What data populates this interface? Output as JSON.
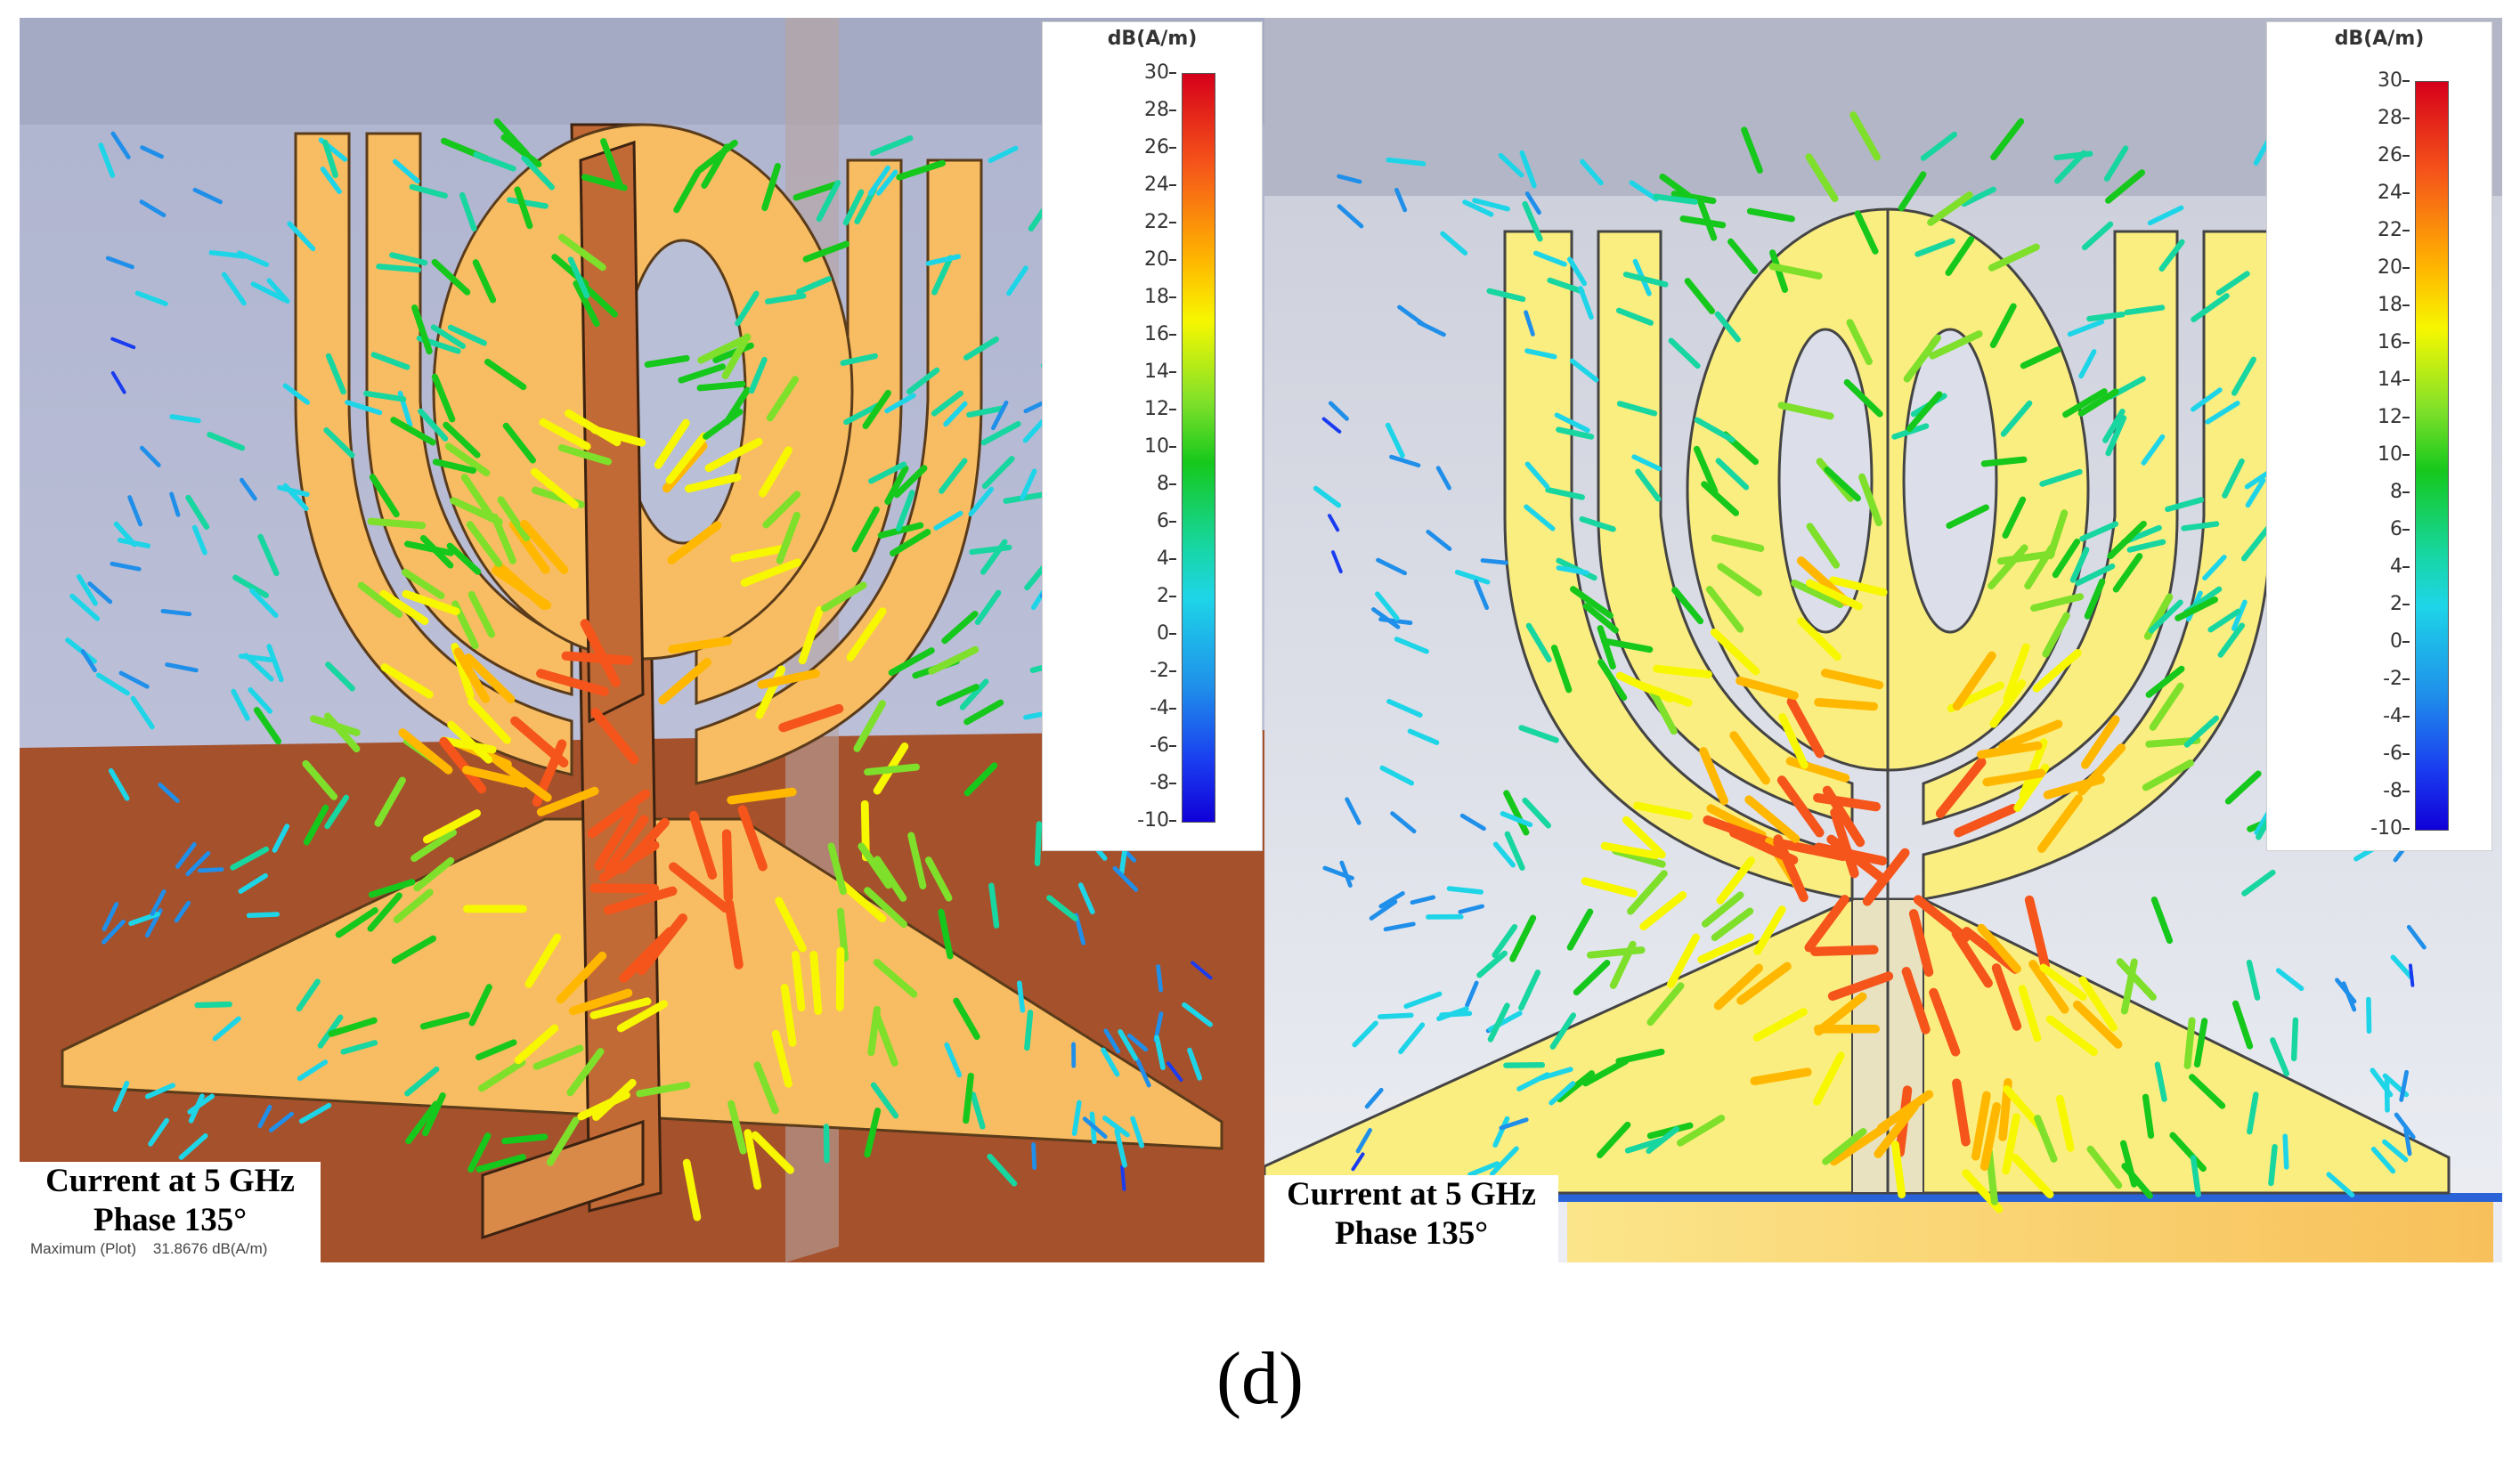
{
  "legend": {
    "unit": "dB(A/m)",
    "ticks": [
      "30",
      "28",
      "26",
      "24",
      "22",
      "20",
      "18",
      "16",
      "14",
      "12",
      "10",
      "8",
      "6",
      "4",
      "2",
      "0",
      "-2",
      "-4",
      "-6",
      "-8",
      "-10"
    ],
    "min": -10,
    "max": 30,
    "colors": [
      "#d6001a",
      "#ffb700",
      "#f7f700",
      "#16c81c",
      "#1ed5e8",
      "#1000d8"
    ]
  },
  "left_panel": {
    "caption_line1": "Current at 5 GHz",
    "caption_line2": "Phase 135°",
    "max_label": "Maximum (Plot)",
    "max_value": "31.8676 dB(A/m)"
  },
  "right_panel": {
    "caption_line1": "Current at 5 GHz",
    "caption_line2": "Phase 135°"
  },
  "figure_label": "(d)",
  "colors": {
    "antenna_left": "#f8bd62",
    "antenna_right": "#fbee80",
    "ground_left": "#a5512c",
    "background_left": "#b9bfd6",
    "background_right": "#d8dbe6"
  }
}
